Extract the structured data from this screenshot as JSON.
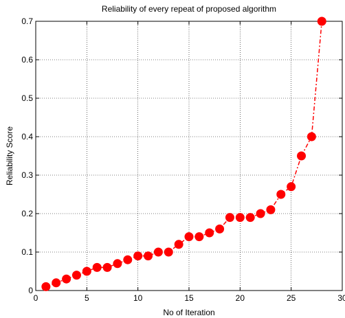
{
  "chart_data": {
    "type": "line",
    "title": "Reliability of every repeat of proposed algorithm",
    "xlabel": "No of Iteration",
    "ylabel": "Reliability Score",
    "xlim": [
      0,
      30
    ],
    "ylim": [
      0,
      0.7
    ],
    "xticks": [
      0,
      5,
      10,
      15,
      20,
      25,
      30
    ],
    "yticks": [
      0,
      0.1,
      0.2,
      0.3,
      0.4,
      0.5,
      0.6,
      0.7
    ],
    "xtick_labels": [
      "0",
      "5",
      "10",
      "15",
      "20",
      "25",
      "30"
    ],
    "ytick_labels": [
      "0",
      "0.1",
      "0.2",
      "0.3",
      "0.4",
      "0.5",
      "0.6",
      "0.7"
    ],
    "grid": true,
    "series": [
      {
        "color": "#ff0000",
        "line_style": "dash-dot",
        "marker": "circle",
        "x": [
          1,
          2,
          3,
          4,
          5,
          6,
          7,
          8,
          9,
          10,
          11,
          12,
          13,
          14,
          15,
          16,
          17,
          18,
          19,
          20,
          21,
          22,
          23,
          24,
          25,
          26,
          27,
          28
        ],
        "y": [
          0.01,
          0.02,
          0.03,
          0.04,
          0.05,
          0.06,
          0.06,
          0.07,
          0.08,
          0.09,
          0.09,
          0.1,
          0.1,
          0.12,
          0.14,
          0.14,
          0.15,
          0.16,
          0.19,
          0.19,
          0.19,
          0.2,
          0.21,
          0.25,
          0.27,
          0.35,
          0.4,
          0.7
        ]
      }
    ]
  }
}
